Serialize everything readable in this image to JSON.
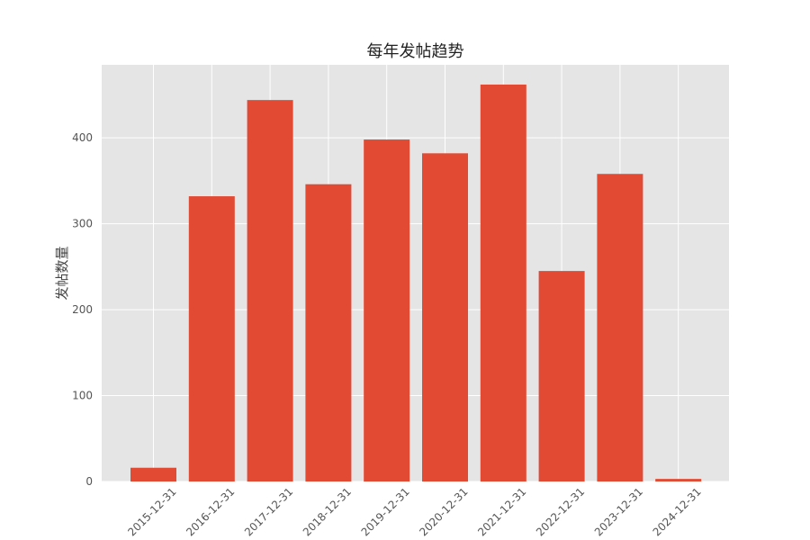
{
  "chart_data": {
    "type": "bar",
    "title": "每年发帖趋势",
    "xlabel": "",
    "ylabel": "发帖数量",
    "categories": [
      "2015-12-31",
      "2016-12-31",
      "2017-12-31",
      "2018-12-31",
      "2019-12-31",
      "2020-12-31",
      "2021-12-31",
      "2022-12-31",
      "2023-12-31",
      "2024-12-31"
    ],
    "values": [
      16,
      332,
      444,
      346,
      398,
      382,
      462,
      245,
      358,
      3
    ],
    "yticks": [
      0,
      100,
      200,
      300,
      400
    ],
    "ylim": [
      0,
      485
    ],
    "grid": true,
    "bar_color": "#E24A33",
    "plot_bg": "#E5E5E5",
    "grid_color": "#FFFFFF"
  }
}
